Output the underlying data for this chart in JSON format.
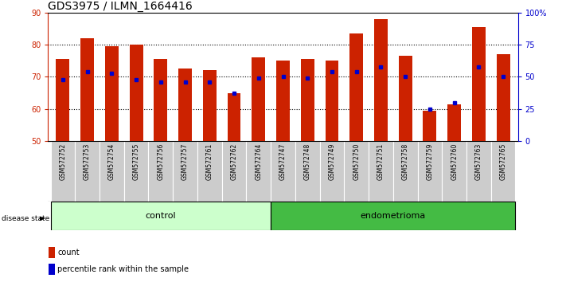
{
  "title": "GDS3975 / ILMN_1664416",
  "samples": [
    "GSM572752",
    "GSM572753",
    "GSM572754",
    "GSM572755",
    "GSM572756",
    "GSM572757",
    "GSM572761",
    "GSM572762",
    "GSM572764",
    "GSM572747",
    "GSM572748",
    "GSM572749",
    "GSM572750",
    "GSM572751",
    "GSM572758",
    "GSM572759",
    "GSM572760",
    "GSM572763",
    "GSM572765"
  ],
  "red_values": [
    75.5,
    82.0,
    79.5,
    80.0,
    75.5,
    72.5,
    72.0,
    65.0,
    76.0,
    75.0,
    75.5,
    75.0,
    83.5,
    88.0,
    76.5,
    59.5,
    61.5,
    85.5,
    77.0
  ],
  "blue_values": [
    69.0,
    71.5,
    71.0,
    69.0,
    68.5,
    68.5,
    68.5,
    65.0,
    69.5,
    70.0,
    69.5,
    71.5,
    71.5,
    73.0,
    70.0,
    60.0,
    62.0,
    73.0,
    70.0
  ],
  "y_min": 50,
  "y_max": 90,
  "y_left_ticks": [
    50,
    60,
    70,
    80,
    90
  ],
  "y_right_ticks": [
    0,
    25,
    50,
    75,
    100
  ],
  "n_control": 9,
  "n_endometrioma": 10,
  "bar_color": "#CC2200",
  "marker_color": "#0000CC",
  "control_bg": "#CCFFCC",
  "endometrioma_bg": "#44BB44",
  "background_color": "#FFFFFF",
  "title_fontsize": 10,
  "tick_fontsize": 7,
  "label_fontsize": 8,
  "sample_label_fontsize": 5.5,
  "group_label_fontsize": 8
}
